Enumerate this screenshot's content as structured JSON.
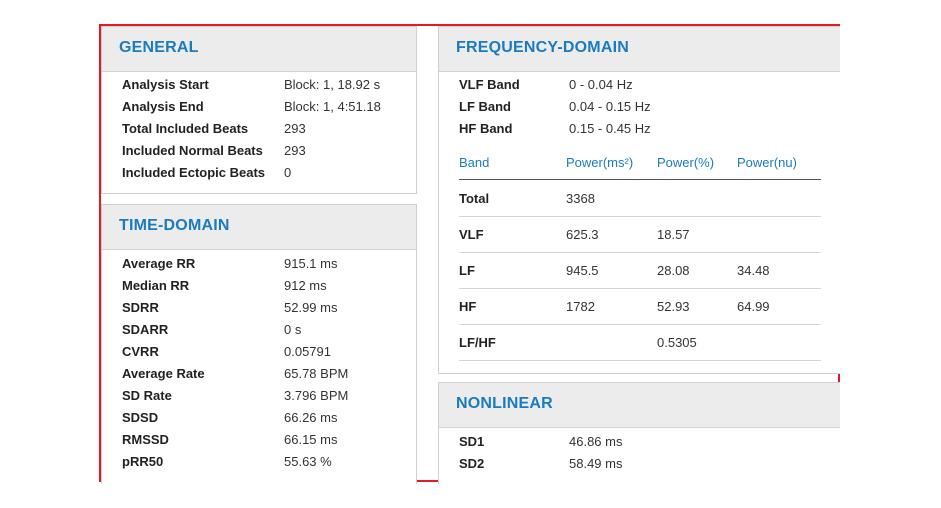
{
  "general": {
    "title": "GENERAL",
    "rows": [
      {
        "label": "Analysis Start",
        "value": "Block: 1, 18.92 s"
      },
      {
        "label": "Analysis End",
        "value": "Block: 1, 4:51.18"
      },
      {
        "label": "Total Included Beats",
        "value": "293"
      },
      {
        "label": "Included Normal Beats",
        "value": "293"
      },
      {
        "label": "Included Ectopic Beats",
        "value": "0"
      }
    ]
  },
  "time_domain": {
    "title": "TIME-DOMAIN",
    "rows": [
      {
        "label": "Average RR",
        "value": "915.1 ms"
      },
      {
        "label": "Median RR",
        "value": "912 ms"
      },
      {
        "label": "SDRR",
        "value": "52.99 ms"
      },
      {
        "label": "SDARR",
        "value": "0 s"
      },
      {
        "label": "CVRR",
        "value": "0.05791"
      },
      {
        "label": "Average Rate",
        "value": "65.78 BPM"
      },
      {
        "label": "SD Rate",
        "value": "3.796 BPM"
      },
      {
        "label": "SDSD",
        "value": "66.26 ms"
      },
      {
        "label": "RMSSD",
        "value": "66.15 ms"
      },
      {
        "label": "pRR50",
        "value": "55.63 %"
      }
    ]
  },
  "frequency_domain": {
    "title": "FREQUENCY-DOMAIN",
    "bands": [
      {
        "label": "VLF Band",
        "value": "0 - 0.04 Hz"
      },
      {
        "label": "LF Band",
        "value": "0.04 - 0.15 Hz"
      },
      {
        "label": "HF Band",
        "value": "0.15 - 0.45 Hz"
      }
    ],
    "table": {
      "headers": [
        "Band",
        "Power(ms²)",
        "Power(%)",
        "Power(nu)"
      ],
      "rows": [
        [
          "Total",
          "3368",
          "",
          ""
        ],
        [
          "VLF",
          "625.3",
          "18.57",
          ""
        ],
        [
          "LF",
          "945.5",
          "28.08",
          "34.48"
        ],
        [
          "HF",
          "1782",
          "52.93",
          "64.99"
        ],
        [
          "LF/HF",
          "",
          "0.5305",
          ""
        ]
      ]
    }
  },
  "nonlinear": {
    "title": "NONLINEAR",
    "rows": [
      {
        "label": "SD1",
        "value": "46.86 ms"
      },
      {
        "label": "SD2",
        "value": "58.49 ms"
      }
    ]
  },
  "colors": {
    "accent": "#1a7bbf",
    "frame_border": "#e01b22",
    "header_bg": "#ececec"
  }
}
